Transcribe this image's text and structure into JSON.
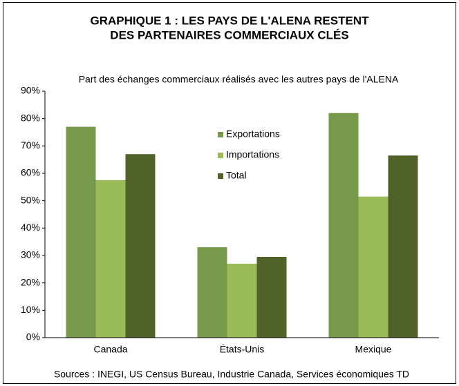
{
  "chart_data": {
    "type": "bar",
    "title": [
      "GRAPHIQUE 1 : LES PAYS DE L'ALENA RESTENT",
      "DES PARTENAIRES COMMERCIAUX CLÉS"
    ],
    "subtitle": "Part des échanges commerciaux réalisés avec les autres pays de l'ALENA",
    "source": "Sources : INEGI, US Census Bureau, Industrie Canada, Services économiques TD",
    "categories": [
      "Canada",
      "États-Unis",
      "Mexique"
    ],
    "series": [
      {
        "name": "Exportations",
        "color": "#77994a",
        "values": [
          77,
          33,
          82
        ]
      },
      {
        "name": "Importations",
        "color": "#9bbb59",
        "values": [
          57.5,
          27,
          51.5
        ]
      },
      {
        "name": "Total",
        "color": "#4f6228",
        "values": [
          67,
          29.5,
          66.5
        ]
      }
    ],
    "ylim": [
      0,
      90
    ],
    "yticks": [
      {
        "value": 0,
        "label": "0%"
      },
      {
        "value": 10,
        "label": "10%"
      },
      {
        "value": 20,
        "label": "20%"
      },
      {
        "value": 30,
        "label": "30%"
      },
      {
        "value": 40,
        "label": "40%"
      },
      {
        "value": 50,
        "label": "50%"
      },
      {
        "value": 60,
        "label": "60%"
      },
      {
        "value": 70,
        "label": "70%"
      },
      {
        "value": 80,
        "label": "80%"
      },
      {
        "value": 90,
        "label": "90%"
      }
    ],
    "grid": false,
    "legend": "center"
  }
}
